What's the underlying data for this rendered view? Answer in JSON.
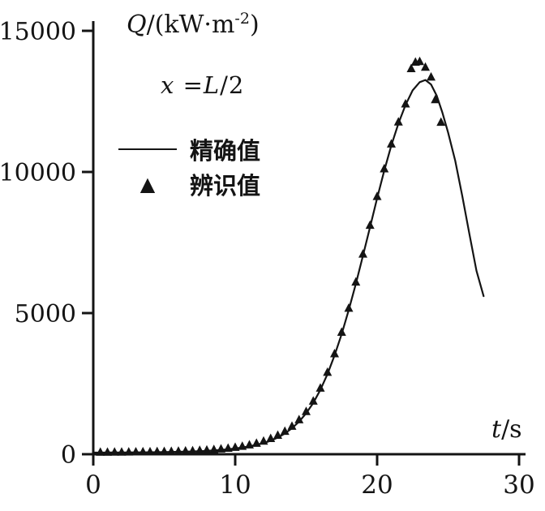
{
  "page": {
    "bg": "#ffffff",
    "ink": "#141414"
  },
  "chart_data": {
    "type": "line",
    "title_parts": {
      "symbol": "Q",
      "pre": "/(kW·m",
      "sup": "-2",
      "post": ")"
    },
    "xlabel_parts": {
      "symbol": "t",
      "rest": "/s"
    },
    "annotation_parts": {
      "lhs": "x",
      "eq": "=",
      "rhs": "L",
      "rest": "/2"
    },
    "xlim": [
      0,
      30
    ],
    "ylim": [
      0,
      15000
    ],
    "x_ticks": [
      0,
      10,
      20,
      30
    ],
    "y_ticks": [
      0,
      5000,
      10000,
      15000
    ],
    "grid": false,
    "legend_position": "upper-left",
    "legend": [
      {
        "label": "精确值",
        "marker": "line"
      },
      {
        "label": "辨识值",
        "marker": "triangle"
      }
    ],
    "series": [
      {
        "name": "精确值",
        "type": "line",
        "points": [
          [
            0,
            58
          ],
          [
            1,
            60
          ],
          [
            2,
            63
          ],
          [
            3,
            66
          ],
          [
            4,
            70
          ],
          [
            5,
            76
          ],
          [
            6,
            85
          ],
          [
            7,
            99
          ],
          [
            8,
            120
          ],
          [
            9,
            152
          ],
          [
            10,
            200
          ],
          [
            11,
            278
          ],
          [
            12,
            395
          ],
          [
            12.5,
            480
          ],
          [
            13,
            590
          ],
          [
            13.5,
            735
          ],
          [
            14,
            920
          ],
          [
            14.5,
            1155
          ],
          [
            15,
            1450
          ],
          [
            15.5,
            1820
          ],
          [
            16,
            2280
          ],
          [
            16.5,
            2840
          ],
          [
            17,
            3500
          ],
          [
            17.5,
            4260
          ],
          [
            18,
            5110
          ],
          [
            18.5,
            6040
          ],
          [
            19,
            7030
          ],
          [
            19.5,
            8050
          ],
          [
            20,
            9070
          ],
          [
            20.5,
            10050
          ],
          [
            21,
            10940
          ],
          [
            21.5,
            11720
          ],
          [
            22,
            12370
          ],
          [
            22.5,
            12890
          ],
          [
            23,
            13180
          ],
          [
            23.4,
            13260
          ],
          [
            23.8,
            13100
          ],
          [
            24.2,
            12700
          ],
          [
            24.6,
            12100
          ],
          [
            25,
            11400
          ],
          [
            25.5,
            10400
          ],
          [
            26,
            9150
          ],
          [
            26.5,
            7800
          ],
          [
            27,
            6500
          ],
          [
            27.5,
            5600
          ]
        ]
      },
      {
        "name": "辨识值",
        "type": "scatter",
        "points": [
          [
            0.5,
            60
          ],
          [
            1,
            62
          ],
          [
            1.5,
            64
          ],
          [
            2,
            66
          ],
          [
            2.5,
            68
          ],
          [
            3,
            71
          ],
          [
            3.5,
            74
          ],
          [
            4,
            77
          ],
          [
            4.5,
            81
          ],
          [
            5,
            85
          ],
          [
            5.5,
            90
          ],
          [
            6,
            96
          ],
          [
            6.5,
            104
          ],
          [
            7,
            113
          ],
          [
            7.5,
            124
          ],
          [
            8,
            138
          ],
          [
            8.5,
            155
          ],
          [
            9,
            176
          ],
          [
            9.5,
            202
          ],
          [
            10,
            232
          ],
          [
            10.5,
            270
          ],
          [
            11,
            318
          ],
          [
            11.5,
            378
          ],
          [
            12,
            452
          ],
          [
            12.5,
            545
          ],
          [
            13,
            660
          ],
          [
            13.5,
            800
          ],
          [
            14,
            980
          ],
          [
            14.5,
            1210
          ],
          [
            15,
            1500
          ],
          [
            15.5,
            1870
          ],
          [
            16,
            2330
          ],
          [
            16.5,
            2890
          ],
          [
            17,
            3550
          ],
          [
            17.5,
            4310
          ],
          [
            18,
            5160
          ],
          [
            18.5,
            6090
          ],
          [
            19,
            7080
          ],
          [
            19.5,
            8100
          ],
          [
            20,
            9120
          ],
          [
            20.5,
            10100
          ],
          [
            21,
            10980
          ],
          [
            21.5,
            11760
          ],
          [
            22,
            12400
          ],
          [
            22.4,
            13650
          ],
          [
            22.7,
            13880
          ],
          [
            23,
            13900
          ],
          [
            23.4,
            13700
          ],
          [
            23.8,
            13350
          ],
          [
            24.1,
            12550
          ],
          [
            24.5,
            11750
          ]
        ]
      }
    ]
  }
}
